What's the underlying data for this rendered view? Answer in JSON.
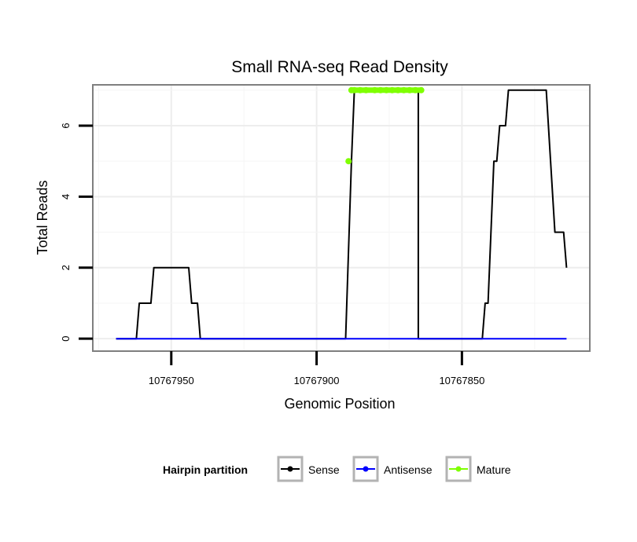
{
  "chart_data": {
    "type": "line",
    "title": "Small RNA-seq Read Density",
    "xlabel": "Genomic Position",
    "ylabel": "Total Reads",
    "x_reversed": true,
    "xlim": [
      10767977,
      10767806
    ],
    "ylim": [
      -0.35,
      7.15
    ],
    "x_ticks": [
      10767950,
      10767900,
      10767850
    ],
    "y_ticks": [
      0,
      2,
      4,
      6
    ],
    "grid": true,
    "legend_position": "bottom",
    "legend_title": "Hairpin partition",
    "series": [
      {
        "name": "Sense",
        "color": "#000000",
        "points": [
          [
            10767969,
            0
          ],
          [
            10767962,
            0
          ],
          [
            10767961,
            1
          ],
          [
            10767957,
            1
          ],
          [
            10767956,
            2
          ],
          [
            10767948,
            2
          ],
          [
            10767947,
            2
          ],
          [
            10767944,
            2
          ],
          [
            10767943,
            1
          ],
          [
            10767941,
            1
          ],
          [
            10767940,
            0
          ],
          [
            10767930,
            0
          ],
          [
            10767910,
            0
          ],
          [
            10767895,
            0
          ],
          [
            10767890,
            0
          ],
          [
            10767888,
            5
          ],
          [
            10767887,
            7
          ],
          [
            10767880,
            7
          ],
          [
            10767865,
            7
          ],
          [
            10767865,
            0
          ],
          [
            10767850,
            0
          ],
          [
            10767843,
            0
          ],
          [
            10767842,
            1
          ],
          [
            10767841,
            1
          ],
          [
            10767839,
            5
          ],
          [
            10767838,
            5
          ],
          [
            10767837,
            6
          ],
          [
            10767835,
            6
          ],
          [
            10767834,
            7
          ],
          [
            10767830,
            7
          ],
          [
            10767822,
            7
          ],
          [
            10767821,
            7
          ],
          [
            10767818,
            3
          ],
          [
            10767815,
            3
          ],
          [
            10767814,
            2
          ]
        ]
      },
      {
        "name": "Antisense",
        "color": "#0000ff",
        "points": [
          [
            10767969,
            0
          ],
          [
            10767814,
            0
          ]
        ]
      },
      {
        "name": "Mature",
        "color": "#7fff00",
        "points": [
          [
            10767889,
            5
          ],
          [
            10767888,
            7
          ],
          [
            10767887,
            7
          ],
          [
            10767885,
            7
          ],
          [
            10767883,
            7
          ],
          [
            10767880,
            7
          ],
          [
            10767878,
            7
          ],
          [
            10767876,
            7
          ],
          [
            10767874,
            7
          ],
          [
            10767872,
            7
          ],
          [
            10767870,
            7
          ],
          [
            10767868,
            7
          ],
          [
            10767866,
            7
          ],
          [
            10767864,
            7
          ]
        ]
      }
    ]
  }
}
